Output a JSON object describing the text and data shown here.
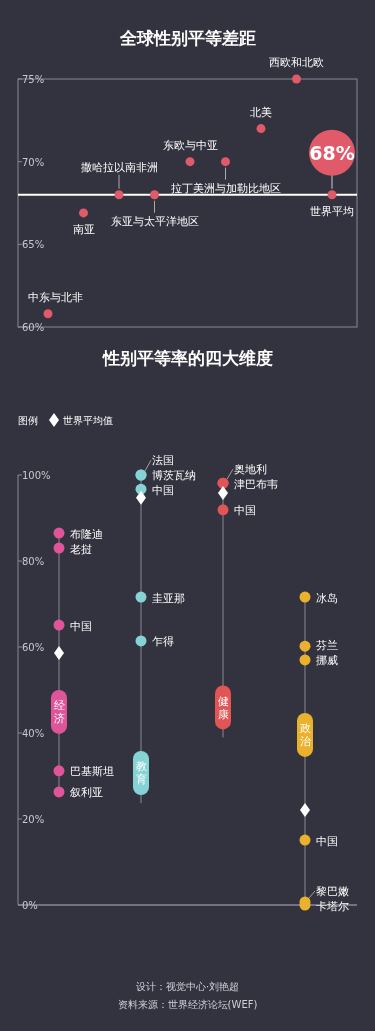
{
  "chart_data": [
    {
      "type": "scatter",
      "title": "全球性别平等差距",
      "categories": [
        "中东与北非",
        "南亚",
        "撒哈拉以南非洲",
        "东亚与太平洋地区",
        "东欧与中亚",
        "拉丁美洲与加勒比地区",
        "北美",
        "西欧和北欧",
        "世界平均"
      ],
      "series": [
        {
          "color": "#e05a6a",
          "values": [
            60.8,
            66.9,
            68,
            68,
            70,
            70,
            72,
            75,
            68
          ]
        }
      ],
      "ylim": [
        60,
        75
      ],
      "yticks": [
        {
          "value": 60,
          "label": "60%"
        },
        {
          "value": 65,
          "label": "65%"
        },
        {
          "value": 70,
          "label": "70%"
        },
        {
          "value": 75,
          "label": "75%"
        }
      ],
      "tick_labels": "y",
      "marker": "circle",
      "ref_lines": [
        {
          "axis": "y",
          "value": 68,
          "color": "#ffffff"
        }
      ],
      "annotations": [
        {
          "text": "68%",
          "x": "世界平均",
          "y": 68
        }
      ]
    },
    {
      "type": "scatter",
      "title": "性别平等率的四大维度",
      "legend_title": "图例",
      "legend": "top left",
      "categories": [
        "经济",
        "教育",
        "健康",
        "政治"
      ],
      "series": [
        {
          "color": "#e0559a",
          "x": [
            "经济",
            "经济",
            "经济",
            "经济",
            "经济"
          ],
          "values": [
            86.5,
            83,
            65.1,
            31.2,
            26.3
          ]
        },
        {
          "color": "#86d3d6",
          "x": [
            "教育",
            "教育",
            "教育",
            "教育",
            "教育"
          ],
          "values": [
            100,
            100,
            96.7,
            71.6,
            61.4
          ]
        },
        {
          "color": "#e25555",
          "x": [
            "健康",
            "健康",
            "健康"
          ],
          "values": [
            98.1,
            98.1,
            91.9
          ]
        },
        {
          "color": "#eab12c",
          "x": [
            "政治",
            "政治",
            "政治",
            "政治",
            "政治",
            "政治"
          ],
          "values": [
            71.6,
            60.2,
            57,
            15.1,
            0.7,
            0
          ]
        },
        {
          "name": "世界平均值",
          "color": "#ffffff",
          "marker": "diamond",
          "x": [
            "经济",
            "教育",
            "健康",
            "政治"
          ],
          "values": [
            58.6,
            94.7,
            95.8,
            22.1
          ]
        }
      ],
      "ylim": [
        0,
        100
      ],
      "yticks": [
        {
          "value": 0,
          "label": "0%"
        },
        {
          "value": 20,
          "label": "20%"
        },
        {
          "value": 40,
          "label": "40%"
        },
        {
          "value": 60,
          "label": "60%"
        },
        {
          "value": 80,
          "label": "80%"
        },
        {
          "value": 100,
          "label": "100%"
        }
      ],
      "annotations": [
        {
          "text": "布隆迪",
          "x": "经济",
          "y": 86.5
        },
        {
          "text": "老挝",
          "x": "经济",
          "y": 83
        },
        {
          "text": "中国",
          "x": "经济",
          "y": 65.1
        },
        {
          "text": "巴基斯坦",
          "x": "经济",
          "y": 31.2
        },
        {
          "text": "叙利亚",
          "x": "经济",
          "y": 26.3
        },
        {
          "text": "法国",
          "x": "教育",
          "y": 100
        },
        {
          "text": "博茨瓦纳",
          "x": "教育",
          "y": 100
        },
        {
          "text": "中国",
          "x": "教育",
          "y": 96.7
        },
        {
          "text": "圭亚那",
          "x": "教育",
          "y": 71.6
        },
        {
          "text": "乍得",
          "x": "教育",
          "y": 61.4
        },
        {
          "text": "奥地利",
          "x": "健康",
          "y": 98.1
        },
        {
          "text": "津巴布韦",
          "x": "健康",
          "y": 98.1
        },
        {
          "text": "中国",
          "x": "健康",
          "y": 91.9
        },
        {
          "text": "冰岛",
          "x": "政治",
          "y": 71.6
        },
        {
          "text": "芬兰",
          "x": "政治",
          "y": 60.2
        },
        {
          "text": "挪威",
          "x": "政治",
          "y": 57
        },
        {
          "text": "中国",
          "x": "政治",
          "y": 15.1
        },
        {
          "text": "黎巴嫩",
          "x": "政治",
          "y": 0.7
        },
        {
          "text": "卡塔尔",
          "x": "政治",
          "y": 0
        },
        "设计：视觉中心·刘艳超",
        "资料来源：世界经济论坛(WEF)"
      ]
    }
  ]
}
